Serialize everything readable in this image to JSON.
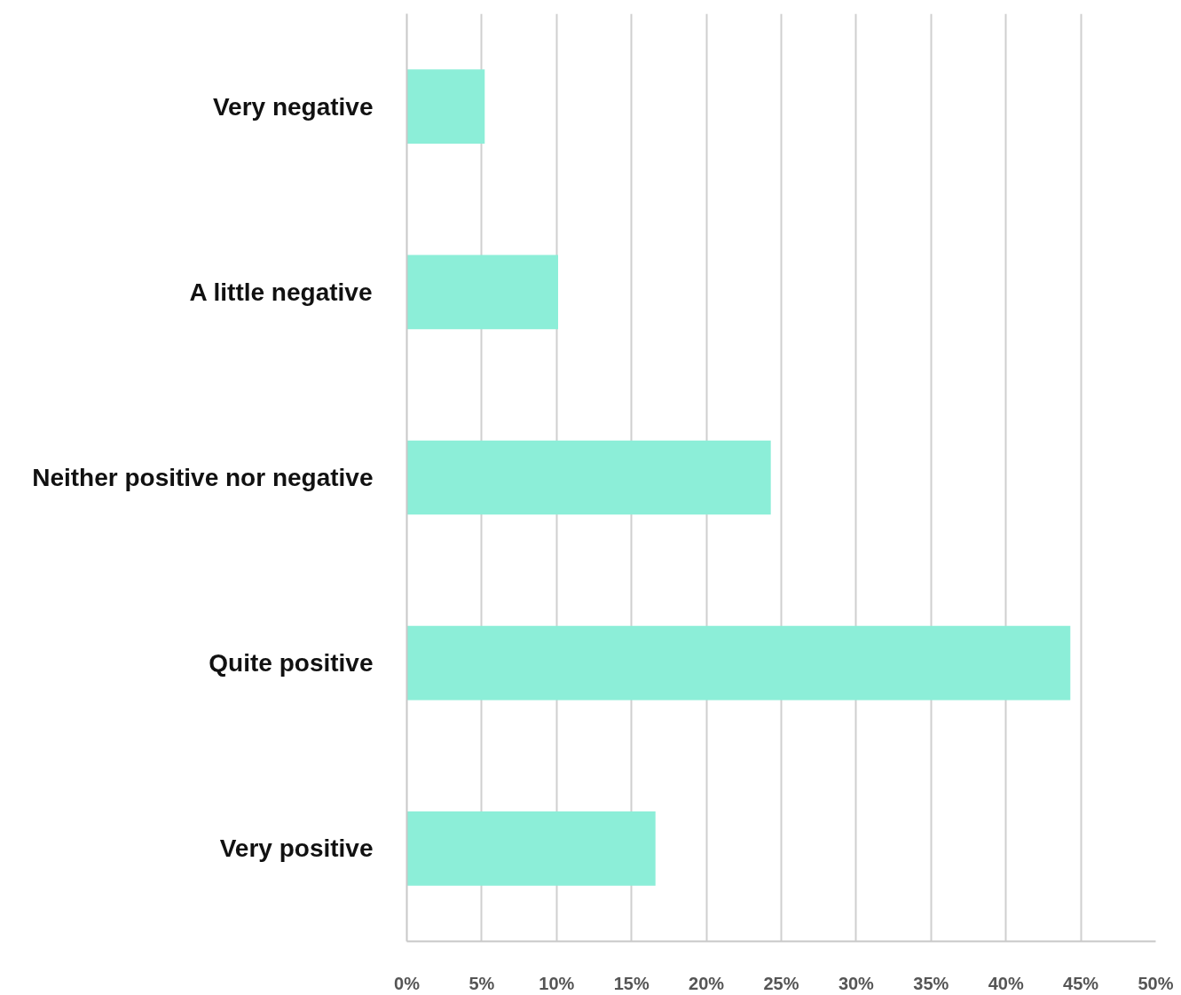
{
  "chart_data": {
    "type": "bar",
    "orientation": "horizontal",
    "categories": [
      "Very negative",
      "A little negative",
      "Neither positive nor negative",
      "Quite positive",
      "Very positive"
    ],
    "values": [
      5.2,
      10.1,
      24.3,
      44.3,
      16.6
    ],
    "color": "#8ceed8",
    "xlim": [
      0,
      50
    ],
    "xticks": [
      {
        "value": 0,
        "label": "0%"
      },
      {
        "value": 5,
        "label": "5%"
      },
      {
        "value": 10,
        "label": "10%"
      },
      {
        "value": 15,
        "label": "15%"
      },
      {
        "value": 20,
        "label": "20%"
      },
      {
        "value": 25,
        "label": "25%"
      },
      {
        "value": 30,
        "label": "30%"
      },
      {
        "value": 35,
        "label": "35%"
      },
      {
        "value": 40,
        "label": "40%"
      },
      {
        "value": 45,
        "label": "45%"
      },
      {
        "value": 50,
        "label": "50%"
      }
    ],
    "grid": "x"
  }
}
